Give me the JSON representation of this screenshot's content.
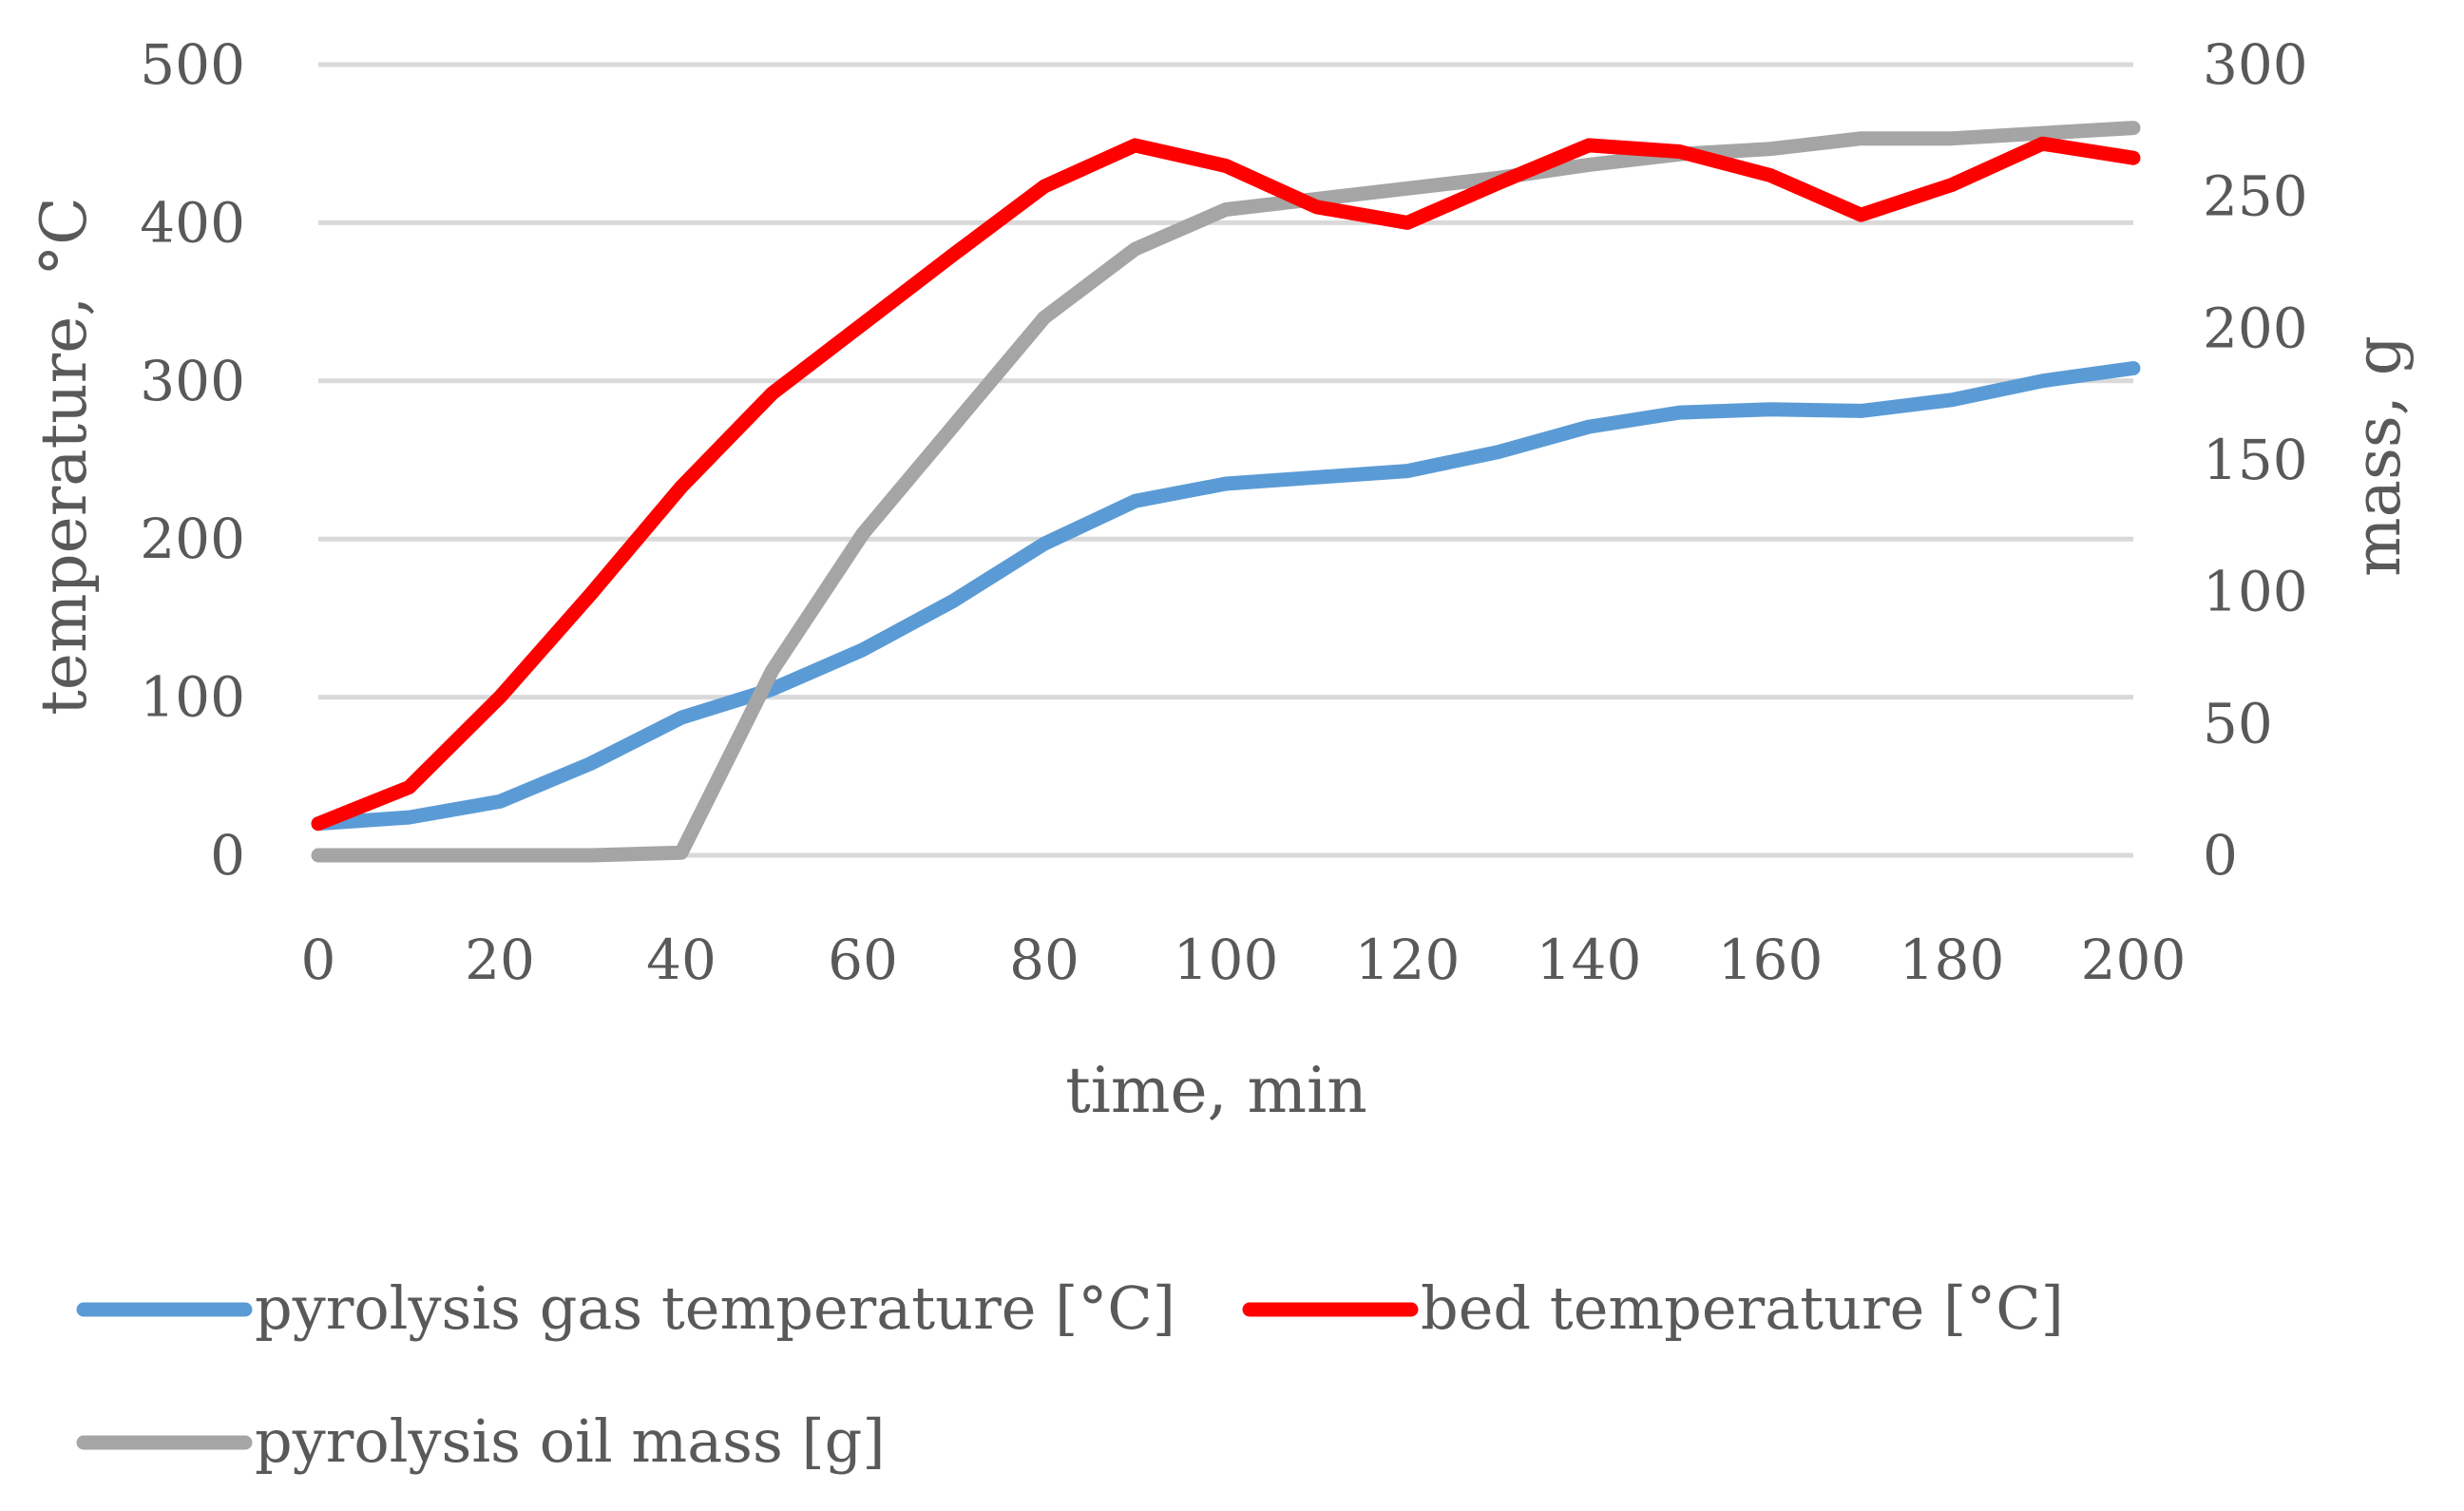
{
  "chart_data": {
    "type": "line",
    "x": [
      0,
      10,
      20,
      30,
      40,
      50,
      60,
      70,
      80,
      90,
      100,
      110,
      120,
      130,
      140,
      150,
      160,
      170,
      180,
      190,
      200
    ],
    "xlabel": "time, min",
    "ylabel": "temperature, °C",
    "y2label": "mass, g",
    "xlim": [
      0,
      200
    ],
    "ylim": [
      0,
      500
    ],
    "y2lim": [
      0,
      300
    ],
    "xticks": [
      "0",
      "20",
      "40",
      "60",
      "80",
      "100",
      "120",
      "140",
      "160",
      "180",
      "200"
    ],
    "yticks": [
      "0",
      "100",
      "200",
      "300",
      "400",
      "500"
    ],
    "y2ticks": [
      "0",
      "50",
      "100",
      "150",
      "200",
      "250",
      "300"
    ],
    "grid": true,
    "legend_position": "bottom",
    "series": [
      {
        "name": "pyrolysis gas temperature [°C]",
        "axis": "left",
        "color": "#5b9bd5",
        "values": [
          20,
          24,
          34,
          58,
          87,
          105,
          130,
          161,
          197,
          224,
          235,
          239,
          243,
          255,
          271,
          280,
          282,
          281,
          288,
          300,
          308
        ]
      },
      {
        "name": "bed temperature [°C]",
        "axis": "left",
        "color": "#ff0000",
        "values": [
          20,
          43,
          100,
          165,
          233,
          292,
          336,
          380,
          423,
          449,
          436,
          410,
          400,
          425,
          449,
          445,
          430,
          405,
          424,
          450,
          441
        ]
      },
      {
        "name": "pyrolysis oil mass [g]",
        "axis": "right",
        "color": "#a5a5a5",
        "values": [
          0,
          0,
          0,
          0,
          1,
          70,
          122,
          163,
          204,
          230,
          245,
          249,
          253,
          257,
          262,
          266,
          268,
          272,
          272,
          274,
          276
        ]
      }
    ]
  }
}
